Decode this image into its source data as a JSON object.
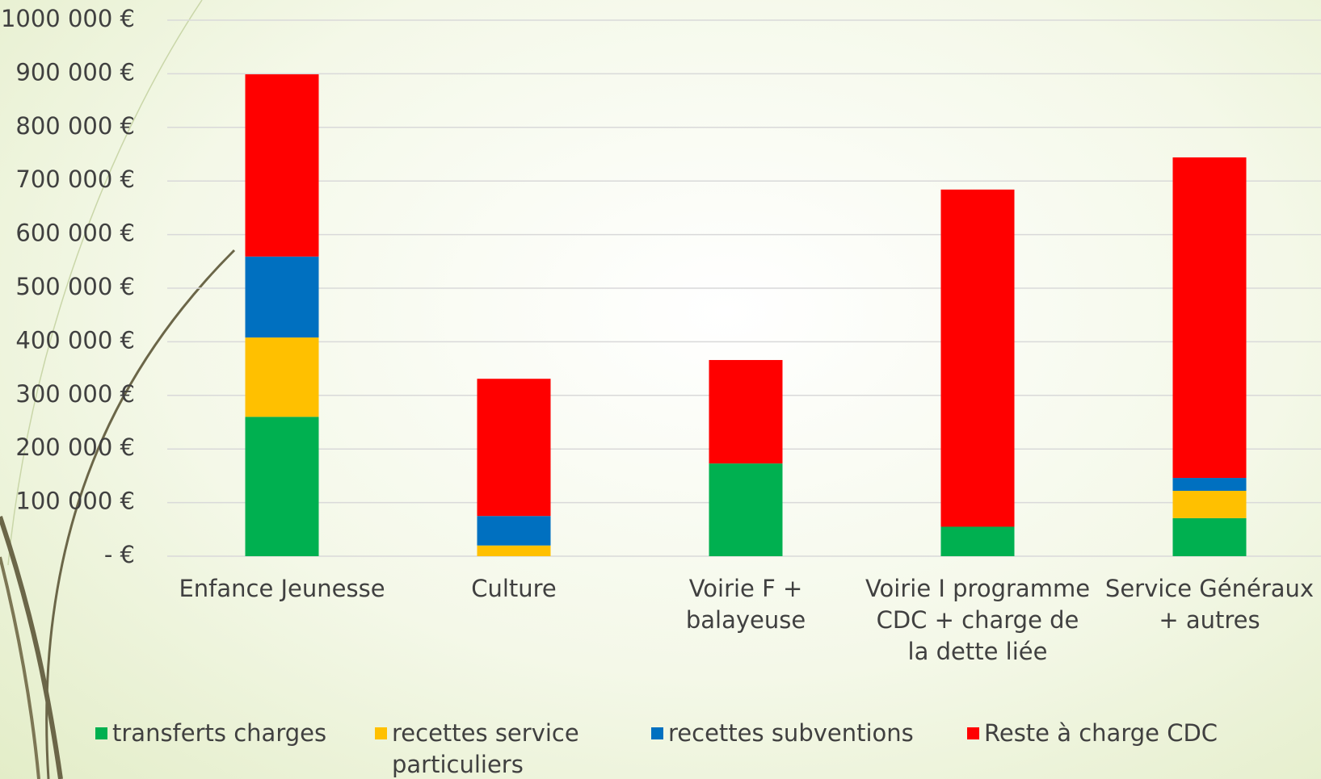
{
  "chart_data": {
    "type": "stacked_bar",
    "categories": [
      "Enfance Jeunesse",
      "Culture",
      "Voirie F + balayeuse",
      "Voirie I programme CDC + charge de la dette liée",
      "Service Généraux + autres"
    ],
    "series": [
      {
        "name": "transferts charges",
        "color": "#00b050",
        "values": [
          260000,
          0,
          173000,
          55000,
          71000
        ]
      },
      {
        "name": "recettes service particuliers",
        "color": "#ffc000",
        "values": [
          148000,
          20000,
          0,
          0,
          51000
        ]
      },
      {
        "name": "recettes subventions",
        "color": "#0070c0",
        "values": [
          151000,
          55000,
          0,
          0,
          24000
        ]
      },
      {
        "name": "Reste à charge CDC",
        "color": "#ff0000",
        "values": [
          340000,
          256000,
          193000,
          629000,
          598000
        ]
      }
    ],
    "ylim": [
      0,
      1000000
    ],
    "yticks": [
      {
        "value": 0,
        "label": "-   €"
      },
      {
        "value": 100000,
        "label": "100 000 €"
      },
      {
        "value": 200000,
        "label": "200 000 €"
      },
      {
        "value": 300000,
        "label": "300 000 €"
      },
      {
        "value": 400000,
        "label": "400 000 €"
      },
      {
        "value": 500000,
        "label": "500 000 €"
      },
      {
        "value": 600000,
        "label": "600 000 €"
      },
      {
        "value": 700000,
        "label": "700 000 €"
      },
      {
        "value": 800000,
        "label": "800 000 €"
      },
      {
        "value": 900000,
        "label": "900 000 €"
      },
      {
        "value": 1000000,
        "label": "1000 000 €"
      }
    ],
    "grid": true
  }
}
